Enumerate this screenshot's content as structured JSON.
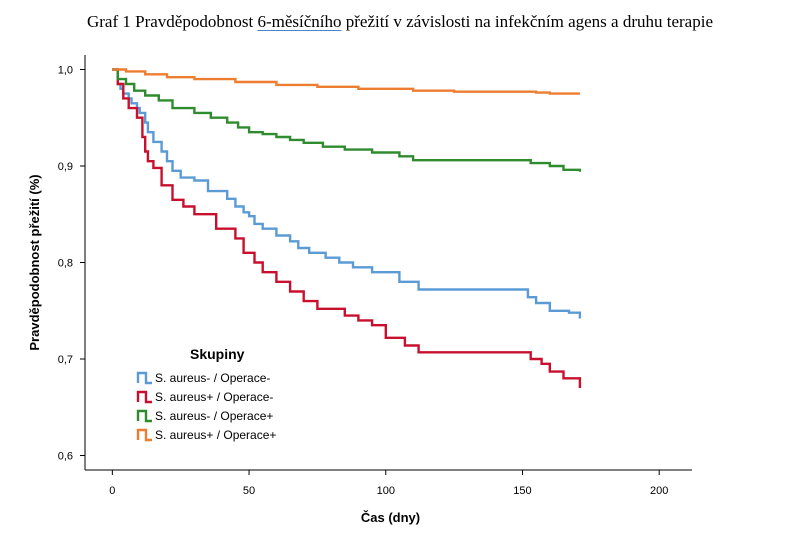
{
  "title": {
    "before": "Graf 1 Pravděpodobnost ",
    "underlined": "6-měsíčního",
    "after": " přežití v závislosti na infekčním agens a druhu terapie"
  },
  "chart_data": {
    "type": "line",
    "step": true,
    "xlabel": "Čas (dny)",
    "ylabel": "Pravděpodobnost přežití (%)",
    "xlim": [
      -10,
      212
    ],
    "ylim": [
      0.585,
      1.015
    ],
    "x_ticks": [
      0,
      50,
      100,
      150,
      200
    ],
    "y_ticks": [
      0.6,
      0.7,
      0.8,
      0.9,
      1.0
    ],
    "x_tick_labels": [
      "0",
      "50",
      "100",
      "150",
      "200"
    ],
    "y_tick_labels": [
      "0,6",
      "0,7",
      "0,8",
      "0,9",
      "1,0"
    ],
    "legend": {
      "title": "Skupiny",
      "placement": "bottom-left"
    },
    "grid": false,
    "series": [
      {
        "name": "S. aureus- / Operace-",
        "color": "#5b9bd5",
        "x": [
          0,
          2,
          3,
          4,
          6,
          7,
          9,
          10,
          12,
          13,
          15,
          18,
          20,
          22,
          25,
          30,
          35,
          40,
          42,
          45,
          48,
          50,
          52,
          55,
          60,
          65,
          68,
          72,
          78,
          83,
          88,
          95,
          105,
          112,
          125,
          145,
          152,
          155,
          160,
          167,
          171
        ],
        "y": [
          1.0,
          0.985,
          0.98,
          0.975,
          0.97,
          0.965,
          0.96,
          0.955,
          0.945,
          0.935,
          0.925,
          0.915,
          0.905,
          0.895,
          0.888,
          0.885,
          0.874,
          0.874,
          0.866,
          0.858,
          0.852,
          0.848,
          0.84,
          0.835,
          0.828,
          0.822,
          0.815,
          0.81,
          0.805,
          0.8,
          0.795,
          0.79,
          0.78,
          0.772,
          0.772,
          0.772,
          0.764,
          0.758,
          0.75,
          0.748,
          0.742
        ]
      },
      {
        "name": "S. aureus+ / Operace-",
        "color": "#c8102e",
        "x": [
          0,
          2,
          4,
          6,
          9,
          11,
          12,
          13,
          15,
          18,
          22,
          26,
          30,
          38,
          45,
          48,
          52,
          55,
          60,
          65,
          70,
          75,
          85,
          90,
          95,
          100,
          107,
          112,
          120,
          140,
          153,
          157,
          160,
          165,
          171
        ],
        "y": [
          1.0,
          0.985,
          0.97,
          0.96,
          0.95,
          0.93,
          0.915,
          0.905,
          0.898,
          0.88,
          0.865,
          0.858,
          0.85,
          0.835,
          0.825,
          0.81,
          0.8,
          0.79,
          0.78,
          0.77,
          0.76,
          0.752,
          0.745,
          0.74,
          0.735,
          0.722,
          0.714,
          0.707,
          0.707,
          0.707,
          0.7,
          0.695,
          0.687,
          0.68,
          0.67
        ]
      },
      {
        "name": "S. aureus- / Operace+",
        "color": "#2e8b2e",
        "x": [
          0,
          2,
          5,
          8,
          12,
          17,
          22,
          30,
          36,
          42,
          46,
          50,
          55,
          60,
          65,
          70,
          77,
          85,
          95,
          105,
          110,
          120,
          150,
          153,
          160,
          165,
          171
        ],
        "y": [
          1.0,
          0.99,
          0.985,
          0.978,
          0.973,
          0.968,
          0.96,
          0.955,
          0.95,
          0.945,
          0.94,
          0.935,
          0.933,
          0.93,
          0.927,
          0.924,
          0.92,
          0.917,
          0.914,
          0.91,
          0.906,
          0.906,
          0.906,
          0.903,
          0.9,
          0.896,
          0.894
        ]
      },
      {
        "name": "S. aureus+ / Operace+",
        "color": "#ed7d31",
        "x": [
          0,
          5,
          12,
          20,
          30,
          45,
          60,
          75,
          90,
          110,
          125,
          140,
          155,
          160,
          171
        ],
        "y": [
          1.0,
          0.998,
          0.995,
          0.992,
          0.99,
          0.987,
          0.984,
          0.982,
          0.98,
          0.978,
          0.977,
          0.977,
          0.976,
          0.975,
          0.975
        ]
      }
    ]
  }
}
